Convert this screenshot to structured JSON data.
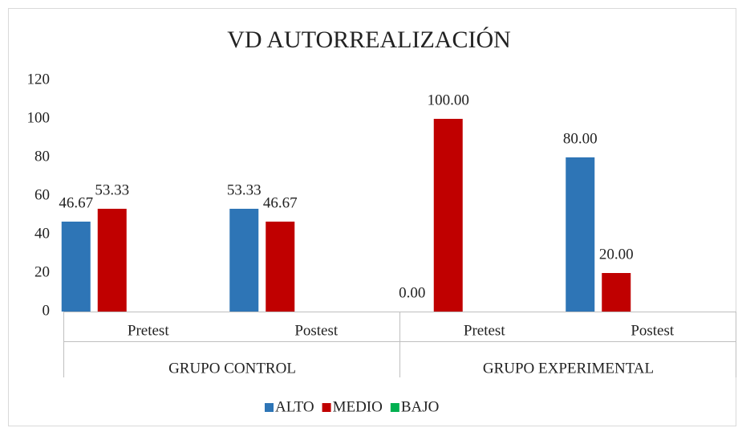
{
  "chart_data": {
    "type": "bar",
    "title": "VD AUTORREALIZACIÓN",
    "categories": [
      "Pretest",
      "Postest",
      "Pretest",
      "Postest"
    ],
    "group_labels": [
      "GRUPO CONTROL",
      "GRUPO EXPERIMENTAL"
    ],
    "series": [
      {
        "name": "ALTO",
        "color": "#2e75b6",
        "values": [
          46.67,
          53.33,
          0,
          80
        ],
        "value_labels": [
          "46.67",
          "53.33",
          "0.00",
          "80.00"
        ]
      },
      {
        "name": "MEDIO",
        "color": "#c00000",
        "values": [
          53.33,
          46.67,
          100,
          20
        ],
        "value_labels": [
          "53.33",
          "46.67",
          "100.00",
          "20.00"
        ]
      },
      {
        "name": "BAJO",
        "color": "#00b050",
        "values": [
          null,
          null,
          null,
          null
        ]
      }
    ],
    "ylim": [
      0,
      120
    ],
    "yticks": [
      0,
      20,
      40,
      60,
      80,
      100,
      120
    ],
    "grid": false,
    "legend": "bottom"
  }
}
